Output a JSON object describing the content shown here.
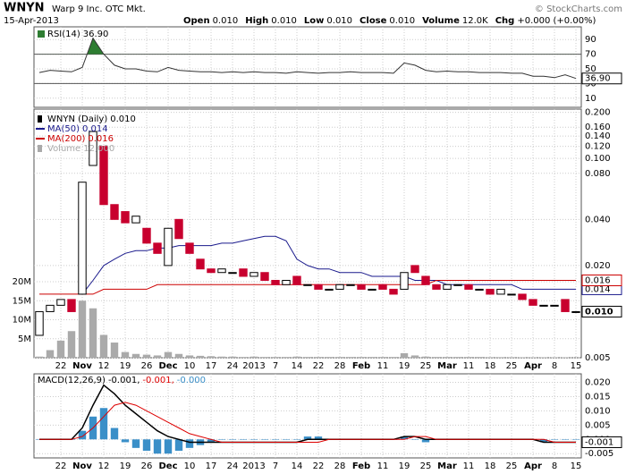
{
  "header": {
    "symbol": "WNYN",
    "company": "Warp 9 Inc. OTC Mkt.",
    "source": "© StockCharts.com",
    "date": "15-Apr-2013",
    "quote": [
      {
        "label": "Open",
        "value": "0.010"
      },
      {
        "label": "High",
        "value": "0.010"
      },
      {
        "label": "Low",
        "value": "0.010"
      },
      {
        "label": "Close",
        "value": "0.010"
      },
      {
        "label": "Volume",
        "value": "12.0K"
      },
      {
        "label": "Chg",
        "value": "+0.000 (+0.00%)"
      }
    ]
  },
  "chart_data": [
    {
      "type": "candlestick",
      "title": "WNYN (Daily)",
      "legend_value": "0.010",
      "up_color": "#000000",
      "down_color": "#c8002e",
      "categories": [
        null,
        null,
        "22",
        null,
        "Nov",
        null,
        "12",
        null,
        "19",
        null,
        "26",
        null,
        "Dec",
        null,
        "10",
        null,
        "17",
        null,
        "24",
        null,
        "2013",
        null,
        "7",
        null,
        "14",
        null,
        "22",
        null,
        "28",
        null,
        "Feb",
        null,
        "11",
        null,
        "19",
        null,
        "25",
        null,
        "Mar",
        null,
        "11",
        null,
        "18",
        null,
        "25",
        null,
        "Apr",
        null,
        "8",
        null,
        "15"
      ],
      "open": [
        0.007,
        0.01,
        0.011,
        0.012,
        0.013,
        0.09,
        0.12,
        0.05,
        0.045,
        0.038,
        0.035,
        0.028,
        0.02,
        0.04,
        0.028,
        0.022,
        0.019,
        0.018,
        0.018,
        0.019,
        0.017,
        0.018,
        0.016,
        0.015,
        0.017,
        0.015,
        0.015,
        0.014,
        0.014,
        0.015,
        0.015,
        0.014,
        0.015,
        0.014,
        0.014,
        0.02,
        0.017,
        0.015,
        0.014,
        0.015,
        0.015,
        0.014,
        0.014,
        0.013,
        0.013,
        0.013,
        0.012,
        0.011,
        0.011,
        0.012,
        0.01
      ],
      "close": [
        0.01,
        0.011,
        0.012,
        0.01,
        0.07,
        0.15,
        0.05,
        0.04,
        0.038,
        0.042,
        0.028,
        0.024,
        0.035,
        0.03,
        0.024,
        0.019,
        0.018,
        0.019,
        0.018,
        0.017,
        0.018,
        0.016,
        0.015,
        0.016,
        0.015,
        0.015,
        0.014,
        0.014,
        0.015,
        0.015,
        0.014,
        0.014,
        0.014,
        0.013,
        0.018,
        0.018,
        0.015,
        0.014,
        0.015,
        0.015,
        0.014,
        0.014,
        0.013,
        0.014,
        0.013,
        0.012,
        0.011,
        0.011,
        0.011,
        0.01,
        0.01
      ],
      "log_scale": true,
      "ylim": [
        0.005,
        0.21
      ],
      "yticks": [
        {
          "value": 0.2,
          "label": "0.200"
        },
        {
          "value": 0.16,
          "label": "0.160"
        },
        {
          "value": 0.14,
          "label": "0.140"
        },
        {
          "value": 0.12,
          "label": "0.120"
        },
        {
          "value": 0.1,
          "label": "0.100"
        },
        {
          "value": 0.08,
          "label": "0.080"
        },
        {
          "value": 0.04,
          "label": "0.040"
        },
        {
          "value": 0.02,
          "label": "0.020"
        },
        {
          "value": 0.005,
          "label": "0.005"
        }
      ],
      "series": [
        {
          "name": "MA(50)",
          "color": "#1a1a8c",
          "legend_value": "0.014",
          "values": [
            null,
            null,
            null,
            null,
            0.013,
            0.016,
            0.02,
            0.022,
            0.024,
            0.025,
            0.025,
            0.026,
            0.026,
            0.027,
            0.027,
            0.027,
            0.027,
            0.028,
            0.028,
            0.029,
            0.03,
            0.031,
            0.031,
            0.029,
            0.022,
            0.02,
            0.019,
            0.019,
            0.018,
            0.018,
            0.018,
            0.017,
            0.017,
            0.017,
            0.017,
            0.016,
            0.016,
            0.016,
            0.015,
            0.015,
            0.015,
            0.015,
            0.015,
            0.015,
            0.015,
            0.014,
            0.014,
            0.014,
            0.014,
            0.014,
            0.014
          ]
        },
        {
          "name": "MA(200)",
          "color": "#cc0000",
          "legend_value": "0.016",
          "values": [
            0.013,
            0.013,
            0.013,
            0.013,
            0.013,
            0.013,
            0.014,
            0.014,
            0.014,
            0.014,
            0.014,
            0.015,
            0.015,
            0.015,
            0.015,
            0.015,
            0.015,
            0.015,
            0.015,
            0.015,
            0.015,
            0.015,
            0.015,
            0.015,
            0.015,
            0.015,
            0.015,
            0.015,
            0.015,
            0.015,
            0.015,
            0.015,
            0.015,
            0.015,
            0.015,
            0.015,
            0.015,
            0.016,
            0.016,
            0.016,
            0.016,
            0.016,
            0.016,
            0.016,
            0.016,
            0.016,
            0.016,
            0.016,
            0.016,
            0.016,
            0.016
          ]
        }
      ],
      "volume": {
        "name": "Volume",
        "color": "#aaaaaa",
        "legend_value": "12,000",
        "ylim": [
          0,
          20000000
        ],
        "yticks": [
          {
            "value": 5000000,
            "label": "5M"
          },
          {
            "value": 10000000,
            "label": "10M"
          },
          {
            "value": 15000000,
            "label": "15M"
          },
          {
            "value": 20000000,
            "label": "20M"
          }
        ],
        "values": [
          300000,
          2000000,
          4500000,
          7000000,
          15000000,
          13000000,
          6000000,
          4000000,
          1500000,
          1000000,
          800000,
          600000,
          1500000,
          1000000,
          600000,
          500000,
          400000,
          300000,
          300000,
          200000,
          300000,
          200000,
          200000,
          200000,
          300000,
          200000,
          200000,
          200000,
          200000,
          200000,
          200000,
          200000,
          200000,
          200000,
          1200000,
          600000,
          300000,
          200000,
          200000,
          200000,
          200000,
          200000,
          150000,
          150000,
          150000,
          100000,
          100000,
          100000,
          100000,
          100000,
          12000
        ]
      }
    },
    {
      "type": "rsi",
      "title": "RSI(14)",
      "legend_value": "36.90",
      "color": "#333333",
      "fill": "#2e7d32",
      "ylim": [
        0,
        100
      ],
      "yticks": [
        90,
        70,
        50,
        30,
        10
      ],
      "bands": [
        70,
        30
      ],
      "values": [
        45,
        48,
        47,
        46,
        52,
        92,
        70,
        55,
        50,
        50,
        47,
        46,
        52,
        48,
        47,
        46,
        46,
        45,
        46,
        45,
        46,
        45,
        45,
        44,
        46,
        45,
        44,
        45,
        45,
        46,
        45,
        45,
        45,
        44,
        58,
        55,
        48,
        46,
        47,
        46,
        46,
        45,
        45,
        45,
        44,
        44,
        40,
        40,
        38,
        42,
        36.9
      ]
    },
    {
      "type": "macd",
      "ylim": [
        -0.0065,
        0.023
      ],
      "yticks": [
        {
          "value": 0.02,
          "label": "0.020"
        },
        {
          "value": 0.015,
          "label": "0.015"
        },
        {
          "value": 0.01,
          "label": "0.010"
        },
        {
          "value": 0.005,
          "label": "0.005"
        },
        {
          "value": 0,
          "label": "0.000"
        },
        {
          "value": -0.005,
          "label": "-0.005"
        }
      ],
      "series": [
        {
          "name": "MACD(12,26,9)",
          "color": "#000000",
          "legend_value": "-0.001,",
          "box_label": "-0.001",
          "values": [
            0,
            0,
            0,
            0,
            0.004,
            0.012,
            0.019,
            0.016,
            0.012,
            0.009,
            0.006,
            0.003,
            0.001,
            0,
            -0.001,
            -0.001,
            -0.001,
            -0.001,
            -0.001,
            -0.001,
            -0.001,
            -0.001,
            -0.001,
            -0.001,
            -0.001,
            0,
            0,
            0,
            0,
            0,
            0,
            0,
            0,
            0,
            0.001,
            0.001,
            0,
            0,
            0,
            0,
            0,
            0,
            0,
            0,
            0,
            0,
            0,
            -0.001,
            -0.001,
            -0.001,
            -0.001
          ]
        },
        {
          "color": "#dd0000",
          "legend_value": "-0.001,",
          "values": [
            0,
            0,
            0,
            0,
            0.001,
            0.004,
            0.008,
            0.012,
            0.013,
            0.012,
            0.01,
            0.008,
            0.006,
            0.004,
            0.002,
            0.001,
            0,
            -0.001,
            -0.001,
            -0.001,
            -0.001,
            -0.001,
            -0.001,
            -0.001,
            -0.001,
            -0.001,
            -0.001,
            0,
            0,
            0,
            0,
            0,
            0,
            0,
            0,
            0.001,
            0.001,
            0,
            0,
            0,
            0,
            0,
            0,
            0,
            0,
            0,
            0,
            0,
            -0.001,
            -0.001,
            -0.001
          ]
        },
        {
          "color": "#3a8fc8",
          "legend_value": "-0.000",
          "histogram": true,
          "values": [
            0,
            0,
            0,
            0,
            0.003,
            0.008,
            0.011,
            0.004,
            -0.001,
            -0.003,
            -0.004,
            -0.005,
            -0.005,
            -0.004,
            -0.003,
            -0.002,
            -0.001,
            0,
            0,
            0,
            0,
            0,
            0,
            0,
            0,
            0.001,
            0.001,
            0,
            0,
            0,
            0,
            0,
            0,
            0,
            0.001,
            0,
            -0.001,
            0,
            0,
            0,
            0,
            0,
            0,
            0,
            0,
            0,
            0,
            -0.001,
            0,
            0,
            0
          ]
        }
      ]
    }
  ]
}
